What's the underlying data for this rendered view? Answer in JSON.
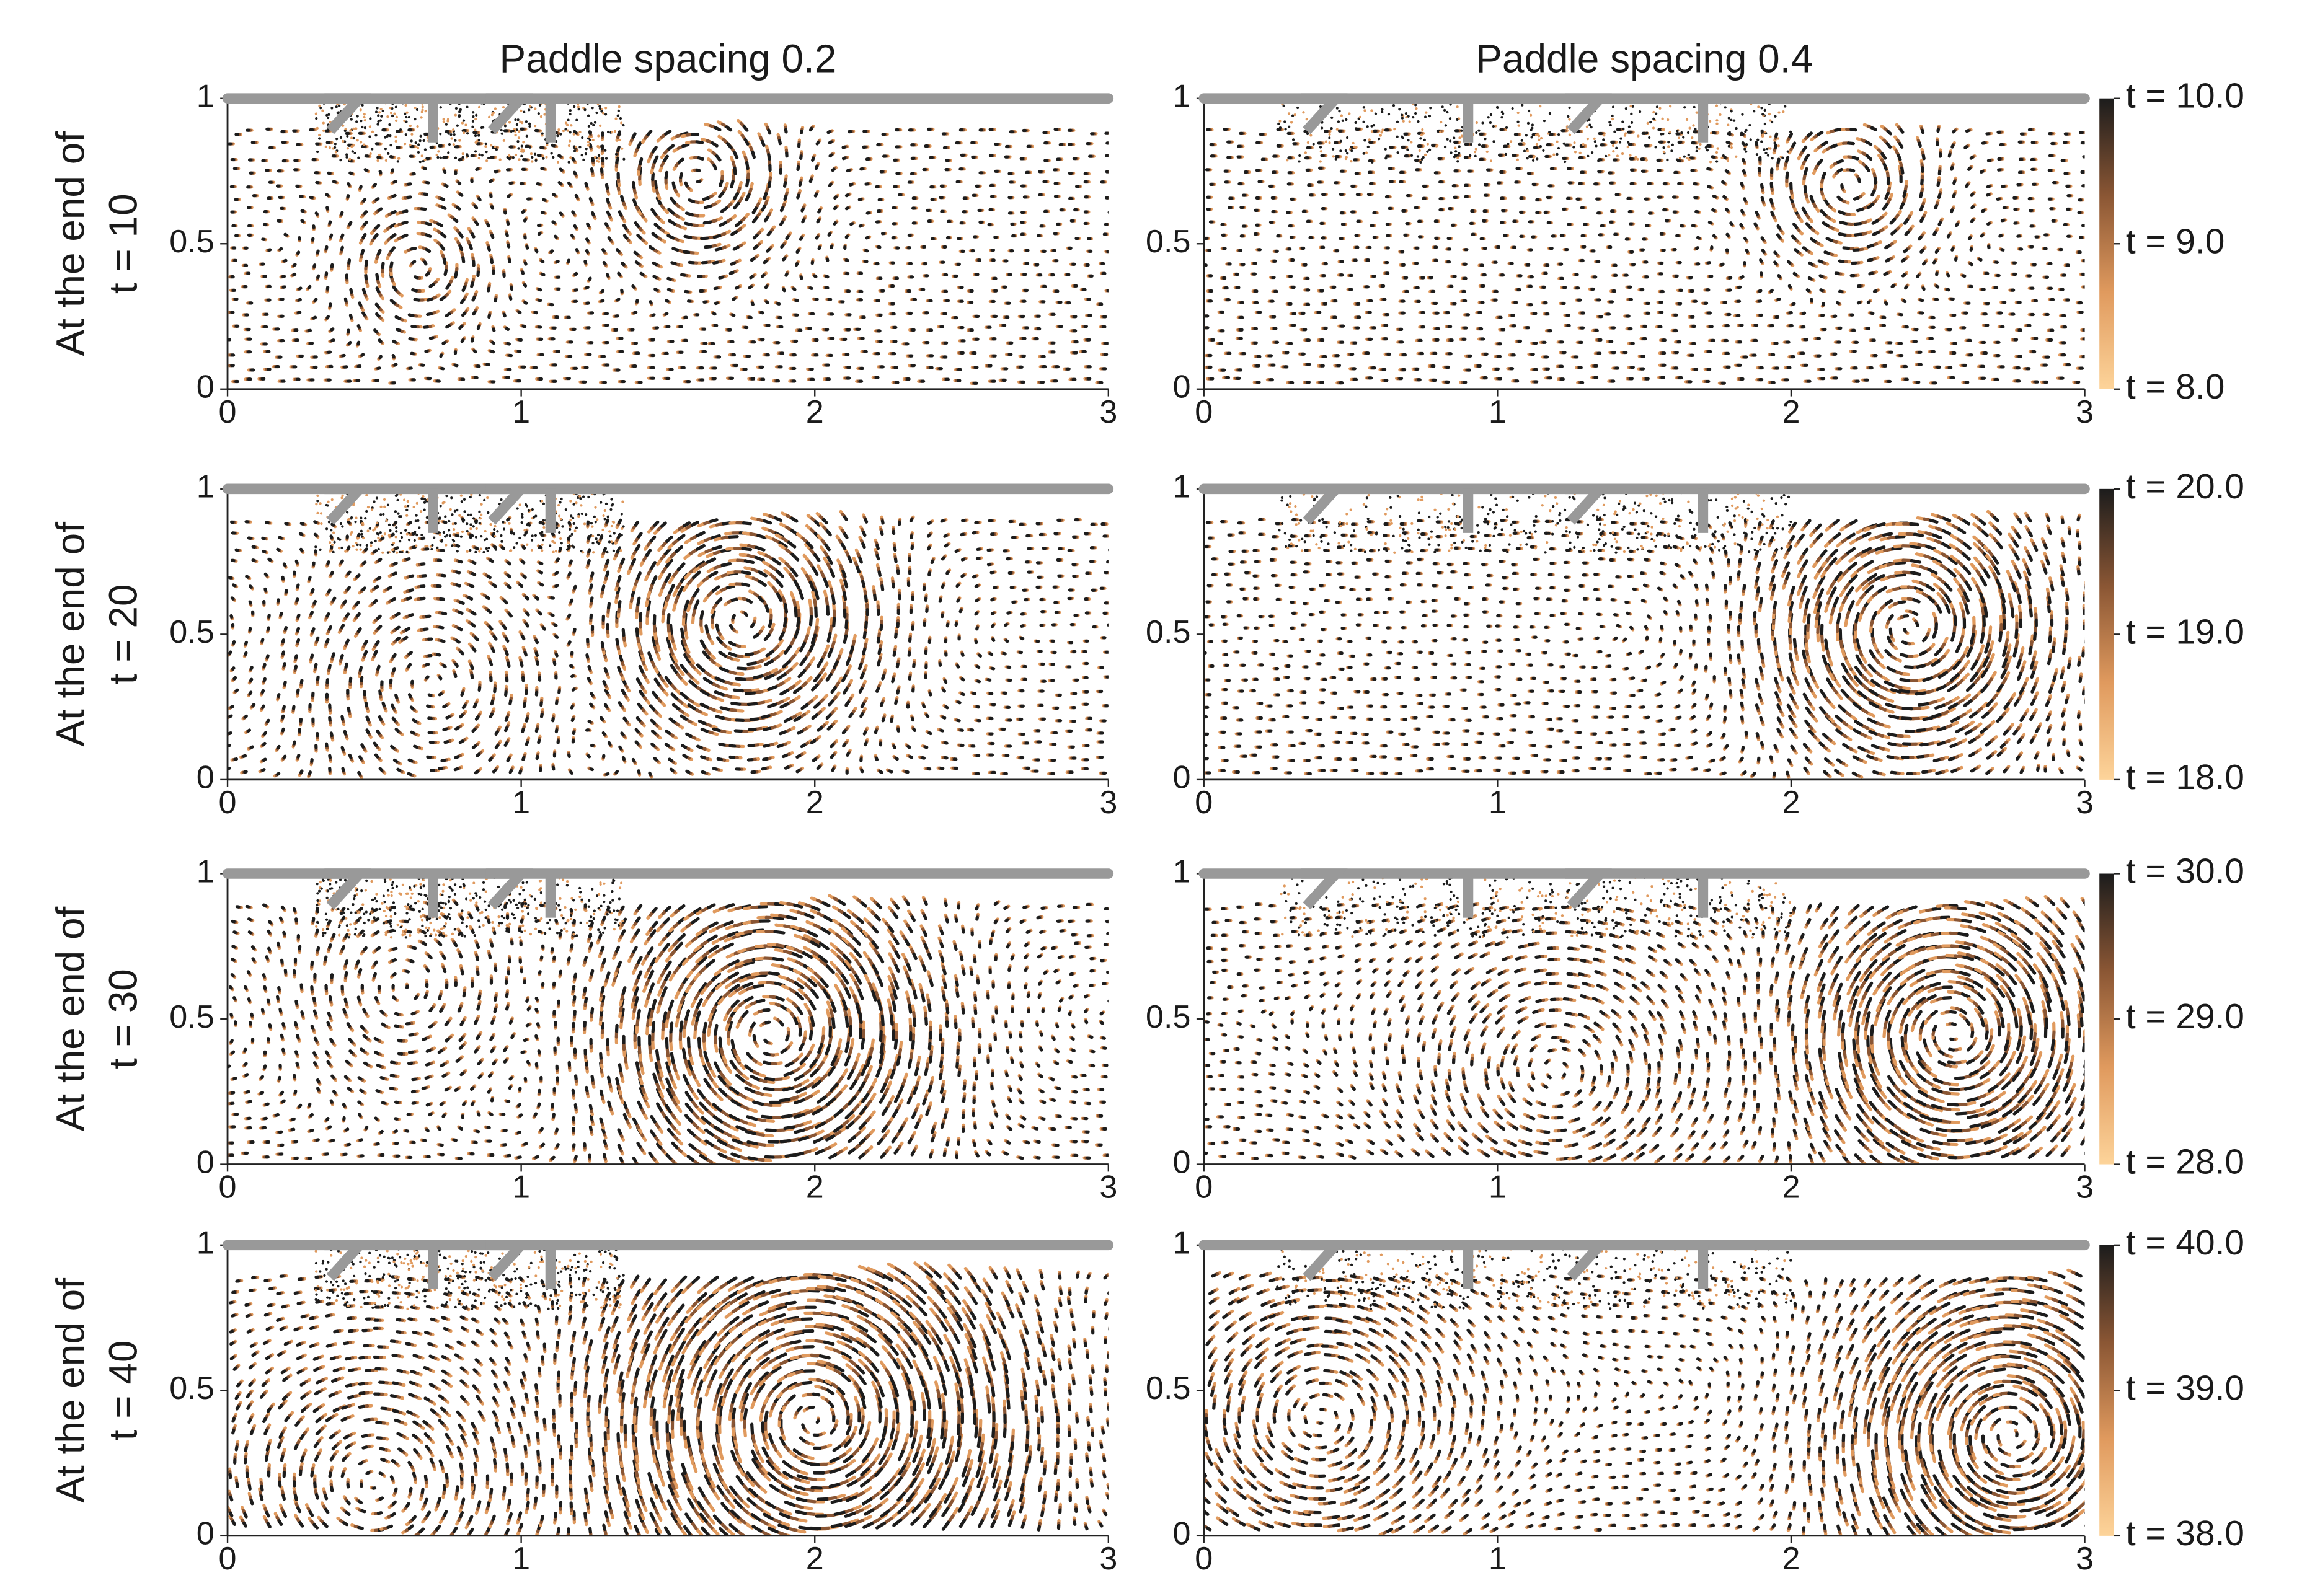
{
  "chart_data": [
    {
      "type": "flow",
      "title": "Paddle spacing 0.2",
      "ylabel": [
        "At the end of",
        "t = 10"
      ],
      "xlim": [
        0,
        3
      ],
      "xticks": [
        0,
        1,
        2,
        3
      ],
      "ylim": [
        0,
        1
      ],
      "yticks": [
        0,
        0.5,
        1
      ]
    },
    {
      "type": "flow",
      "title": "Paddle spacing 0.4",
      "xlim": [
        0,
        3
      ],
      "xticks": [
        0,
        1,
        2,
        3
      ],
      "ylim": [
        0,
        1
      ],
      "yticks": [
        0,
        0.5,
        1
      ],
      "colorbar": {
        "clim": [
          8,
          10
        ],
        "ticks": [
          {
            "value": 10,
            "label": "t = 10.0"
          },
          {
            "value": 9,
            "label": "t = 9.0"
          },
          {
            "value": 8,
            "label": "t = 8.0"
          }
        ],
        "colors": [
          "#fdd49a",
          "#e09a5e",
          "#8a5634",
          "#1c1c1c"
        ]
      }
    },
    {
      "type": "flow",
      "ylabel": [
        "At the end of",
        "t = 20"
      ],
      "xlim": [
        0,
        3
      ],
      "xticks": [
        0,
        1,
        2,
        3
      ],
      "ylim": [
        0,
        1
      ],
      "yticks": [
        0,
        0.5,
        1
      ]
    },
    {
      "type": "flow",
      "xlim": [
        0,
        3
      ],
      "xticks": [
        0,
        1,
        2,
        3
      ],
      "ylim": [
        0,
        1
      ],
      "yticks": [
        0,
        0.5,
        1
      ],
      "colorbar": {
        "clim": [
          18,
          20
        ],
        "ticks": [
          {
            "value": 20,
            "label": "t = 20.0"
          },
          {
            "value": 19,
            "label": "t = 19.0"
          },
          {
            "value": 18,
            "label": "t = 18.0"
          }
        ],
        "colors": [
          "#fdd49a",
          "#e09a5e",
          "#8a5634",
          "#1c1c1c"
        ]
      }
    },
    {
      "type": "flow",
      "ylabel": [
        "At the end of",
        "t = 30"
      ],
      "xlim": [
        0,
        3
      ],
      "xticks": [
        0,
        1,
        2,
        3
      ],
      "ylim": [
        0,
        1
      ],
      "yticks": [
        0,
        0.5,
        1
      ]
    },
    {
      "type": "flow",
      "xlim": [
        0,
        3
      ],
      "xticks": [
        0,
        1,
        2,
        3
      ],
      "ylim": [
        0,
        1
      ],
      "yticks": [
        0,
        0.5,
        1
      ],
      "colorbar": {
        "clim": [
          28,
          30
        ],
        "ticks": [
          {
            "value": 30,
            "label": "t = 30.0"
          },
          {
            "value": 29,
            "label": "t = 29.0"
          },
          {
            "value": 28,
            "label": "t = 28.0"
          }
        ],
        "colors": [
          "#fdd49a",
          "#e09a5e",
          "#8a5634",
          "#1c1c1c"
        ]
      }
    },
    {
      "type": "flow",
      "ylabel": [
        "At the end of",
        "t = 40"
      ],
      "xlim": [
        0,
        3
      ],
      "xticks": [
        0,
        1,
        2,
        3
      ],
      "ylim": [
        0,
        1
      ],
      "yticks": [
        0,
        0.5,
        1
      ]
    },
    {
      "type": "flow",
      "xlim": [
        0,
        3
      ],
      "xticks": [
        0,
        1,
        2,
        3
      ],
      "ylim": [
        0,
        1
      ],
      "yticks": [
        0,
        0.5,
        1
      ],
      "colorbar": {
        "clim": [
          38,
          40
        ],
        "ticks": [
          {
            "value": 40,
            "label": "t = 40.0"
          },
          {
            "value": 39,
            "label": "t = 39.0"
          },
          {
            "value": 38,
            "label": "t = 38.0"
          }
        ],
        "colors": [
          "#fdd49a",
          "#e09a5e",
          "#8a5634",
          "#1c1c1c"
        ]
      }
    }
  ]
}
